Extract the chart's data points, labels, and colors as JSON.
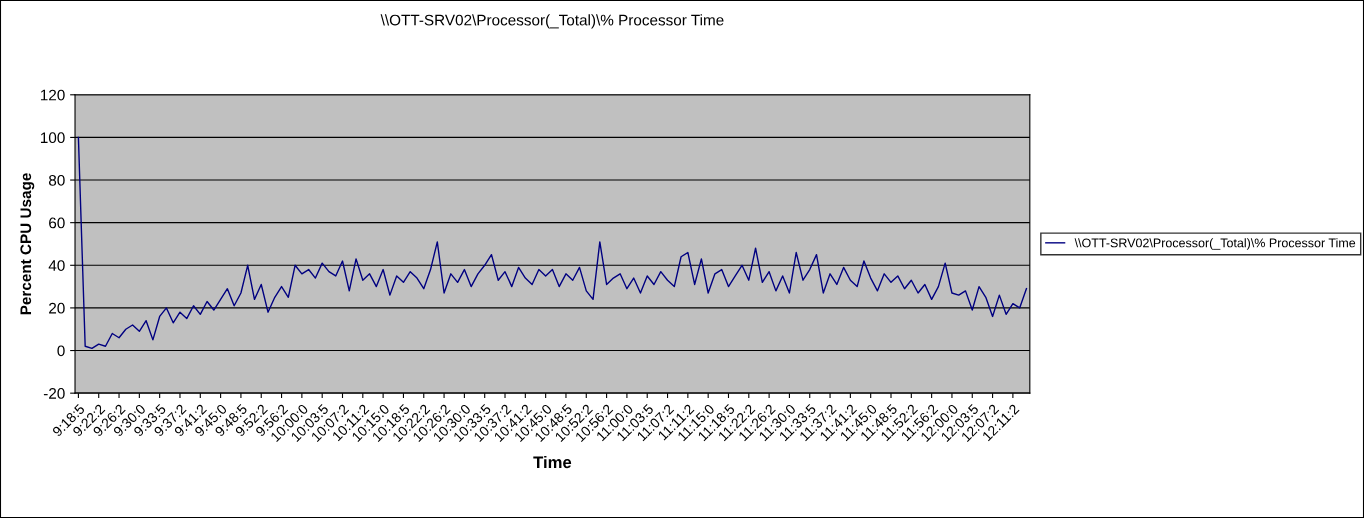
{
  "chart_data": {
    "type": "line",
    "title": "\\\\OTT-SRV02\\Processor(_Total)\\% Processor Time",
    "xlabel": "Time",
    "ylabel": "Percent CPU Usage",
    "categories": [
      "9:18:5",
      null,
      null,
      "9:22:2",
      null,
      null,
      "9:26:2",
      null,
      null,
      "9:30:0",
      null,
      null,
      "9:33:5",
      null,
      null,
      "9:37:2",
      null,
      null,
      "9:41:2",
      null,
      null,
      "9:45:0",
      null,
      null,
      "9:48:5",
      null,
      null,
      "9:52:2",
      null,
      null,
      "9:56:2",
      null,
      null,
      "10:00:0",
      null,
      null,
      "10:03:5",
      null,
      null,
      "10:07:2",
      null,
      null,
      "10:11:2",
      null,
      null,
      "10:15:0",
      null,
      null,
      "10:18:5",
      null,
      null,
      "10:22:2",
      null,
      null,
      "10:26:2",
      null,
      null,
      "10:30:0",
      null,
      null,
      "10:33:5",
      null,
      null,
      "10:37:2",
      null,
      null,
      "10:41:2",
      null,
      null,
      "10:45:0",
      null,
      null,
      "10:48:5",
      null,
      null,
      "10:52:2",
      null,
      null,
      "10:56:2",
      null,
      null,
      "11:00:0",
      null,
      null,
      "11:03:5",
      null,
      null,
      "11:07:2",
      null,
      null,
      "11:11:2",
      null,
      null,
      "11:15:0",
      null,
      null,
      "11:18:5",
      null,
      null,
      "11:22:2",
      null,
      null,
      "11:26:2",
      null,
      null,
      "11:30:0",
      null,
      null,
      "11:33:5",
      null,
      null,
      "11:37:2",
      null,
      null,
      "11:41:2",
      null,
      null,
      "11:45:0",
      null,
      null,
      "11:48:5",
      null,
      null,
      "11:52:2",
      null,
      null,
      "11:56:2",
      null,
      null,
      "12:00:0",
      null,
      null,
      "12:03:5",
      null,
      null,
      "12:07:2",
      null,
      null,
      "12:11:2",
      null,
      null
    ],
    "series": [
      {
        "name": "\\\\OTT-SRV02\\Processor(_Total)\\% Processor Time",
        "color": "#000080",
        "values": [
          100,
          2,
          1,
          3,
          2,
          8,
          6,
          10,
          12,
          9,
          14,
          5,
          16,
          20,
          13,
          18,
          15,
          21,
          17,
          23,
          19,
          24,
          29,
          21,
          27,
          40,
          24,
          31,
          18,
          25,
          30,
          25,
          40,
          36,
          38,
          34,
          41,
          37,
          35,
          42,
          28,
          43,
          33,
          36,
          30,
          38,
          26,
          35,
          32,
          37,
          34,
          29,
          38,
          51,
          27,
          36,
          32,
          38,
          30,
          36,
          40,
          45,
          33,
          37,
          30,
          39,
          34,
          31,
          38,
          35,
          38,
          30,
          36,
          33,
          39,
          28,
          24,
          51,
          31,
          34,
          36,
          29,
          34,
          27,
          35,
          31,
          37,
          33,
          30,
          44,
          46,
          31,
          43,
          27,
          36,
          38,
          30,
          35,
          40,
          33,
          48,
          32,
          37,
          28,
          35,
          27,
          46,
          33,
          38,
          45,
          27,
          36,
          31,
          39,
          33,
          30,
          42,
          34,
          28,
          36,
          32,
          35,
          29,
          33,
          27,
          31,
          24,
          30,
          41,
          27,
          26,
          28,
          19,
          30,
          25,
          16,
          26,
          17,
          22,
          20,
          29
        ]
      }
    ],
    "ylim": [
      -20,
      120
    ],
    "yticks": [
      -20,
      0,
      20,
      40,
      60,
      80,
      100,
      120
    ],
    "grid": "y",
    "legend": "right",
    "marker": "none",
    "line_style": "solid"
  }
}
